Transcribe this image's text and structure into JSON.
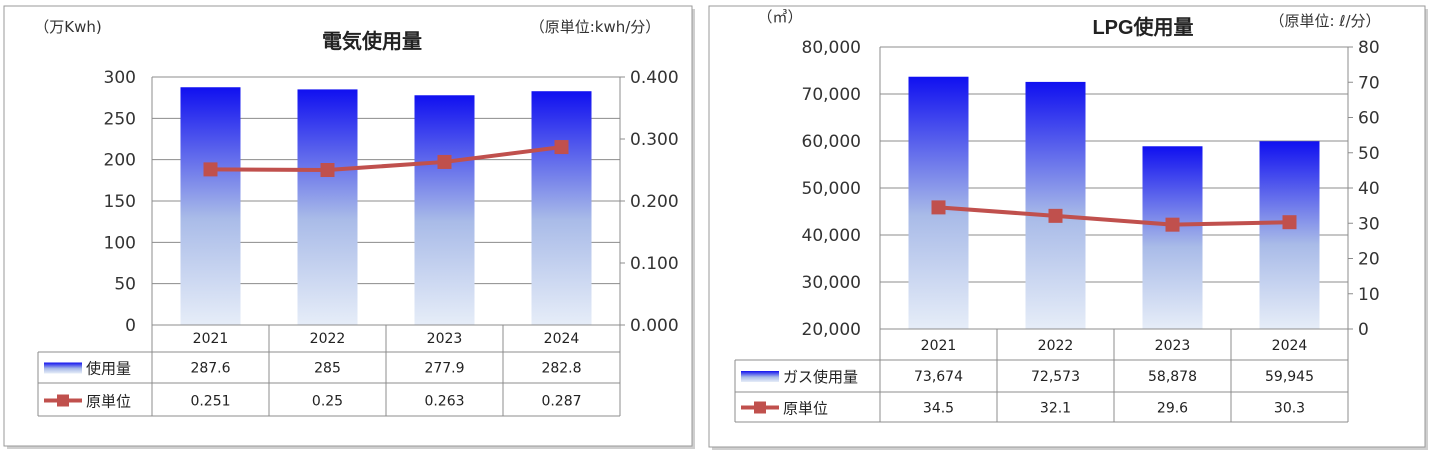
{
  "chart_data": [
    {
      "type": "bar",
      "title": "電気使用量",
      "ylabel": "（万Kwh)",
      "y2label": "（原単位:kwh/分）",
      "categories": [
        "2021",
        "2022",
        "2023",
        "2024"
      ],
      "ylim": [
        0,
        300
      ],
      "y2lim": [
        0,
        0.4
      ],
      "yticks": [
        "300",
        "250",
        "200",
        "150",
        "100",
        "50",
        "0"
      ],
      "y2ticks": [
        "0.400",
        "0.300",
        "0.200",
        "0.100",
        "0.000"
      ],
      "grid": true,
      "series": [
        {
          "name": "使用量",
          "type": "bar",
          "axis": "left",
          "values": [
            287.6,
            285,
            277.9,
            282.8
          ],
          "labels": [
            "287.6",
            "285",
            "277.9",
            "282.8"
          ]
        },
        {
          "name": "原単位",
          "type": "line",
          "axis": "right",
          "values": [
            0.251,
            0.25,
            0.263,
            0.287
          ],
          "labels": [
            "0.251",
            "0.25",
            "0.263",
            "0.287"
          ]
        }
      ],
      "colors": {
        "bar_top": "#1010f0",
        "bar_bottom": "#e6edf8",
        "line": "#c0504d"
      }
    },
    {
      "type": "bar",
      "title": "LPG使用量",
      "ylabel": "（㎥）",
      "y2label": "（原単位: ℓ/分）",
      "categories": [
        "2021",
        "2022",
        "2023",
        "2024"
      ],
      "ylim": [
        20000,
        80000
      ],
      "y2lim": [
        0,
        80
      ],
      "yticks": [
        "80,000",
        "70,000",
        "60,000",
        "50,000",
        "40,000",
        "30,000",
        "20,000"
      ],
      "y2ticks": [
        "80",
        "70",
        "60",
        "50",
        "40",
        "30",
        "20",
        "10",
        "0"
      ],
      "grid": true,
      "series": [
        {
          "name": "ガス使用量",
          "type": "bar",
          "axis": "left",
          "values": [
            73674,
            72573,
            58878,
            59945
          ],
          "labels": [
            "73,674",
            "72,573",
            "58,878",
            "59,945"
          ]
        },
        {
          "name": "原単位",
          "type": "line",
          "axis": "right",
          "values": [
            34.5,
            32.1,
            29.6,
            30.3
          ],
          "labels": [
            "34.5",
            "32.1",
            "29.6",
            "30.3"
          ]
        }
      ],
      "colors": {
        "bar_top": "#1010f0",
        "bar_bottom": "#e6edf8",
        "line": "#c0504d"
      }
    }
  ]
}
